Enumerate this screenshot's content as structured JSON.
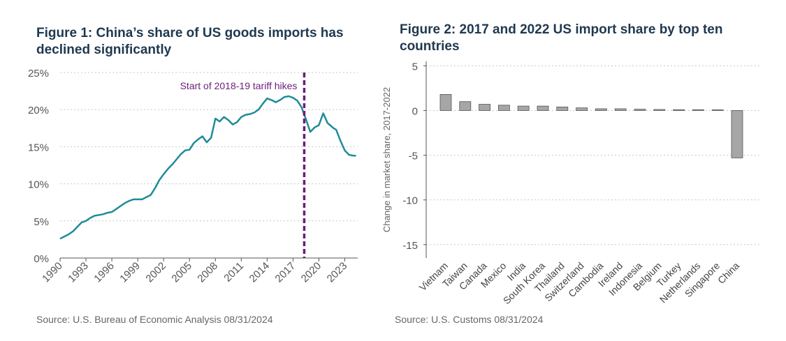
{
  "figure1": {
    "title_line1": "Figure 1: China’s share of US goods imports has",
    "title_line2": "declined significantly",
    "source": "Source: U.S. Bureau of Economic Analysis 08/31/2024",
    "line_color": "#1f8b98",
    "marker_color": "#6b1f7a"
  },
  "figure2": {
    "title_line1": "Figure 2: 2017 and 2022 US import share by top ten",
    "title_line2": "countries",
    "source": "Source: U.S. Customs 08/31/2024",
    "bar_color": "#a6a6a6"
  },
  "chart_data": [
    {
      "type": "line",
      "title": "Figure 1: China’s share of US goods imports has declined significantly",
      "xlabel": "",
      "ylabel": "",
      "xlim": [
        1990,
        2024.5
      ],
      "ylim": [
        0,
        25
      ],
      "x_ticks": [
        1990,
        1993,
        1996,
        1999,
        2002,
        2005,
        2008,
        2011,
        2014,
        2017,
        2020,
        2023
      ],
      "x_tick_labels": [
        "1990",
        "1993",
        "1996",
        "1999",
        "2002",
        "2005",
        "2008",
        "2011",
        "2014",
        "2017",
        "2020",
        "2023"
      ],
      "y_ticks": [
        0,
        5,
        10,
        15,
        20,
        25
      ],
      "y_tick_labels": [
        "0%",
        "5%",
        "10%",
        "15%",
        "20%",
        "25%"
      ],
      "grid": "horizontal dotted",
      "annotation": {
        "x": 2018.3,
        "label": "Start of 2018-19 tariff hikes"
      },
      "series": [
        {
          "x": [
            1990,
            1990.5,
            1991,
            1991.5,
            1992,
            1992.5,
            1993,
            1993.5,
            1994,
            1994.5,
            1995,
            1995.5,
            1996,
            1996.5,
            1997,
            1997.5,
            1998,
            1998.5,
            1999,
            1999.5,
            2000,
            2000.5,
            2001,
            2001.5,
            2002,
            2002.5,
            2003,
            2003.5,
            2004,
            2004.5,
            2005,
            2005.5,
            2006,
            2006.5,
            2007,
            2007.5,
            2008,
            2008.5,
            2009,
            2009.5,
            2010,
            2010.5,
            2011,
            2011.5,
            2012,
            2012.5,
            2013,
            2013.5,
            2014,
            2014.5,
            2015,
            2015.5,
            2016,
            2016.5,
            2017,
            2017.5,
            2018,
            2018.5,
            2019,
            2019.5,
            2020,
            2020.5,
            2021,
            2021.3,
            2021.7,
            2022,
            2022.5,
            2023,
            2023.5,
            2024,
            2024.3
          ],
          "y": [
            2.6,
            2.9,
            3.2,
            3.6,
            4.2,
            4.8,
            5.0,
            5.4,
            5.7,
            5.8,
            5.9,
            6.1,
            6.2,
            6.6,
            7.0,
            7.4,
            7.7,
            7.9,
            7.9,
            7.9,
            8.2,
            8.5,
            9.4,
            10.5,
            11.3,
            12.0,
            12.6,
            13.3,
            14.0,
            14.5,
            14.6,
            15.5,
            16.0,
            16.4,
            15.6,
            16.2,
            18.8,
            18.4,
            19.0,
            18.6,
            18.0,
            18.3,
            19.0,
            19.3,
            19.4,
            19.6,
            20.0,
            20.8,
            21.5,
            21.3,
            21.0,
            21.3,
            21.7,
            21.8,
            21.6,
            21.2,
            20.3,
            18.7,
            17.0,
            17.6,
            17.9,
            19.5,
            18.2,
            17.9,
            17.5,
            17.3,
            15.8,
            14.5,
            13.9,
            13.8,
            13.8
          ]
        }
      ]
    },
    {
      "type": "bar",
      "title": "Figure 2: 2017 and 2022 US import share by top ten countries",
      "xlabel": "",
      "ylabel": "Change in market share, 2017-2022",
      "ylim": [
        -16.5,
        5.5
      ],
      "y_ticks": [
        5,
        0,
        -5,
        -10,
        -15
      ],
      "y_tick_labels": [
        "5",
        "0",
        "-5",
        "-10",
        "-15"
      ],
      "grid": "horizontal dotted",
      "categories": [
        "Vietnam",
        "Taiwan",
        "Canada",
        "Mexico",
        "India",
        "South Korea",
        "Thailand",
        "Switzerland",
        "Cambodia",
        "Ireland",
        "Indonesia",
        "Belgium",
        "Turkey",
        "Netherlands",
        "Singapore",
        "China"
      ],
      "values": [
        1.8,
        1.0,
        0.7,
        0.6,
        0.5,
        0.5,
        0.4,
        0.3,
        0.2,
        0.2,
        0.15,
        0.12,
        0.1,
        0.1,
        0.08,
        -5.3
      ]
    }
  ]
}
